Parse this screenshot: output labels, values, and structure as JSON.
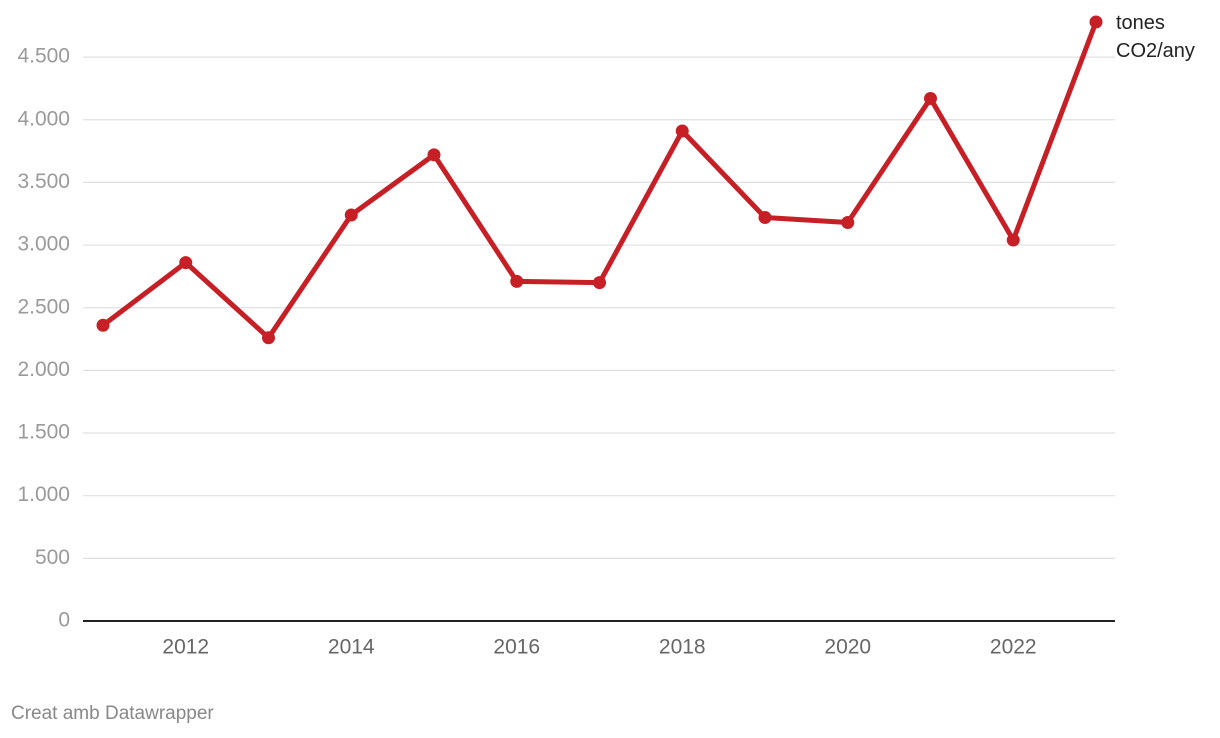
{
  "chart_data": {
    "type": "line",
    "x": [
      2011,
      2012,
      2013,
      2014,
      2015,
      2016,
      2017,
      2018,
      2019,
      2020,
      2021,
      2022,
      2023
    ],
    "series": [
      {
        "name": "tones CO2/any",
        "color": "#c62026",
        "values": [
          2360,
          2860,
          2260,
          3240,
          3720,
          2710,
          2700,
          3910,
          3220,
          3180,
          4170,
          3040,
          4780
        ]
      }
    ],
    "xlim": [
      2011,
      2023
    ],
    "xticks": [
      2012,
      2014,
      2016,
      2018,
      2020,
      2022
    ],
    "ylim": [
      0,
      4780
    ],
    "yticks": [
      0,
      500,
      {
        "value": 1000,
        "label": "1.000"
      },
      {
        "value": 1500,
        "label": "1.500"
      },
      {
        "value": 2000,
        "label": "2.000"
      },
      {
        "value": 2500,
        "label": "2.500"
      },
      {
        "value": 3000,
        "label": "3.000"
      },
      {
        "value": 3500,
        "label": "3.500"
      },
      {
        "value": 4000,
        "label": "4.000"
      },
      {
        "value": 4500,
        "label": "4.500"
      }
    ],
    "grid": true,
    "source": "Creat amb Datawrapper"
  }
}
